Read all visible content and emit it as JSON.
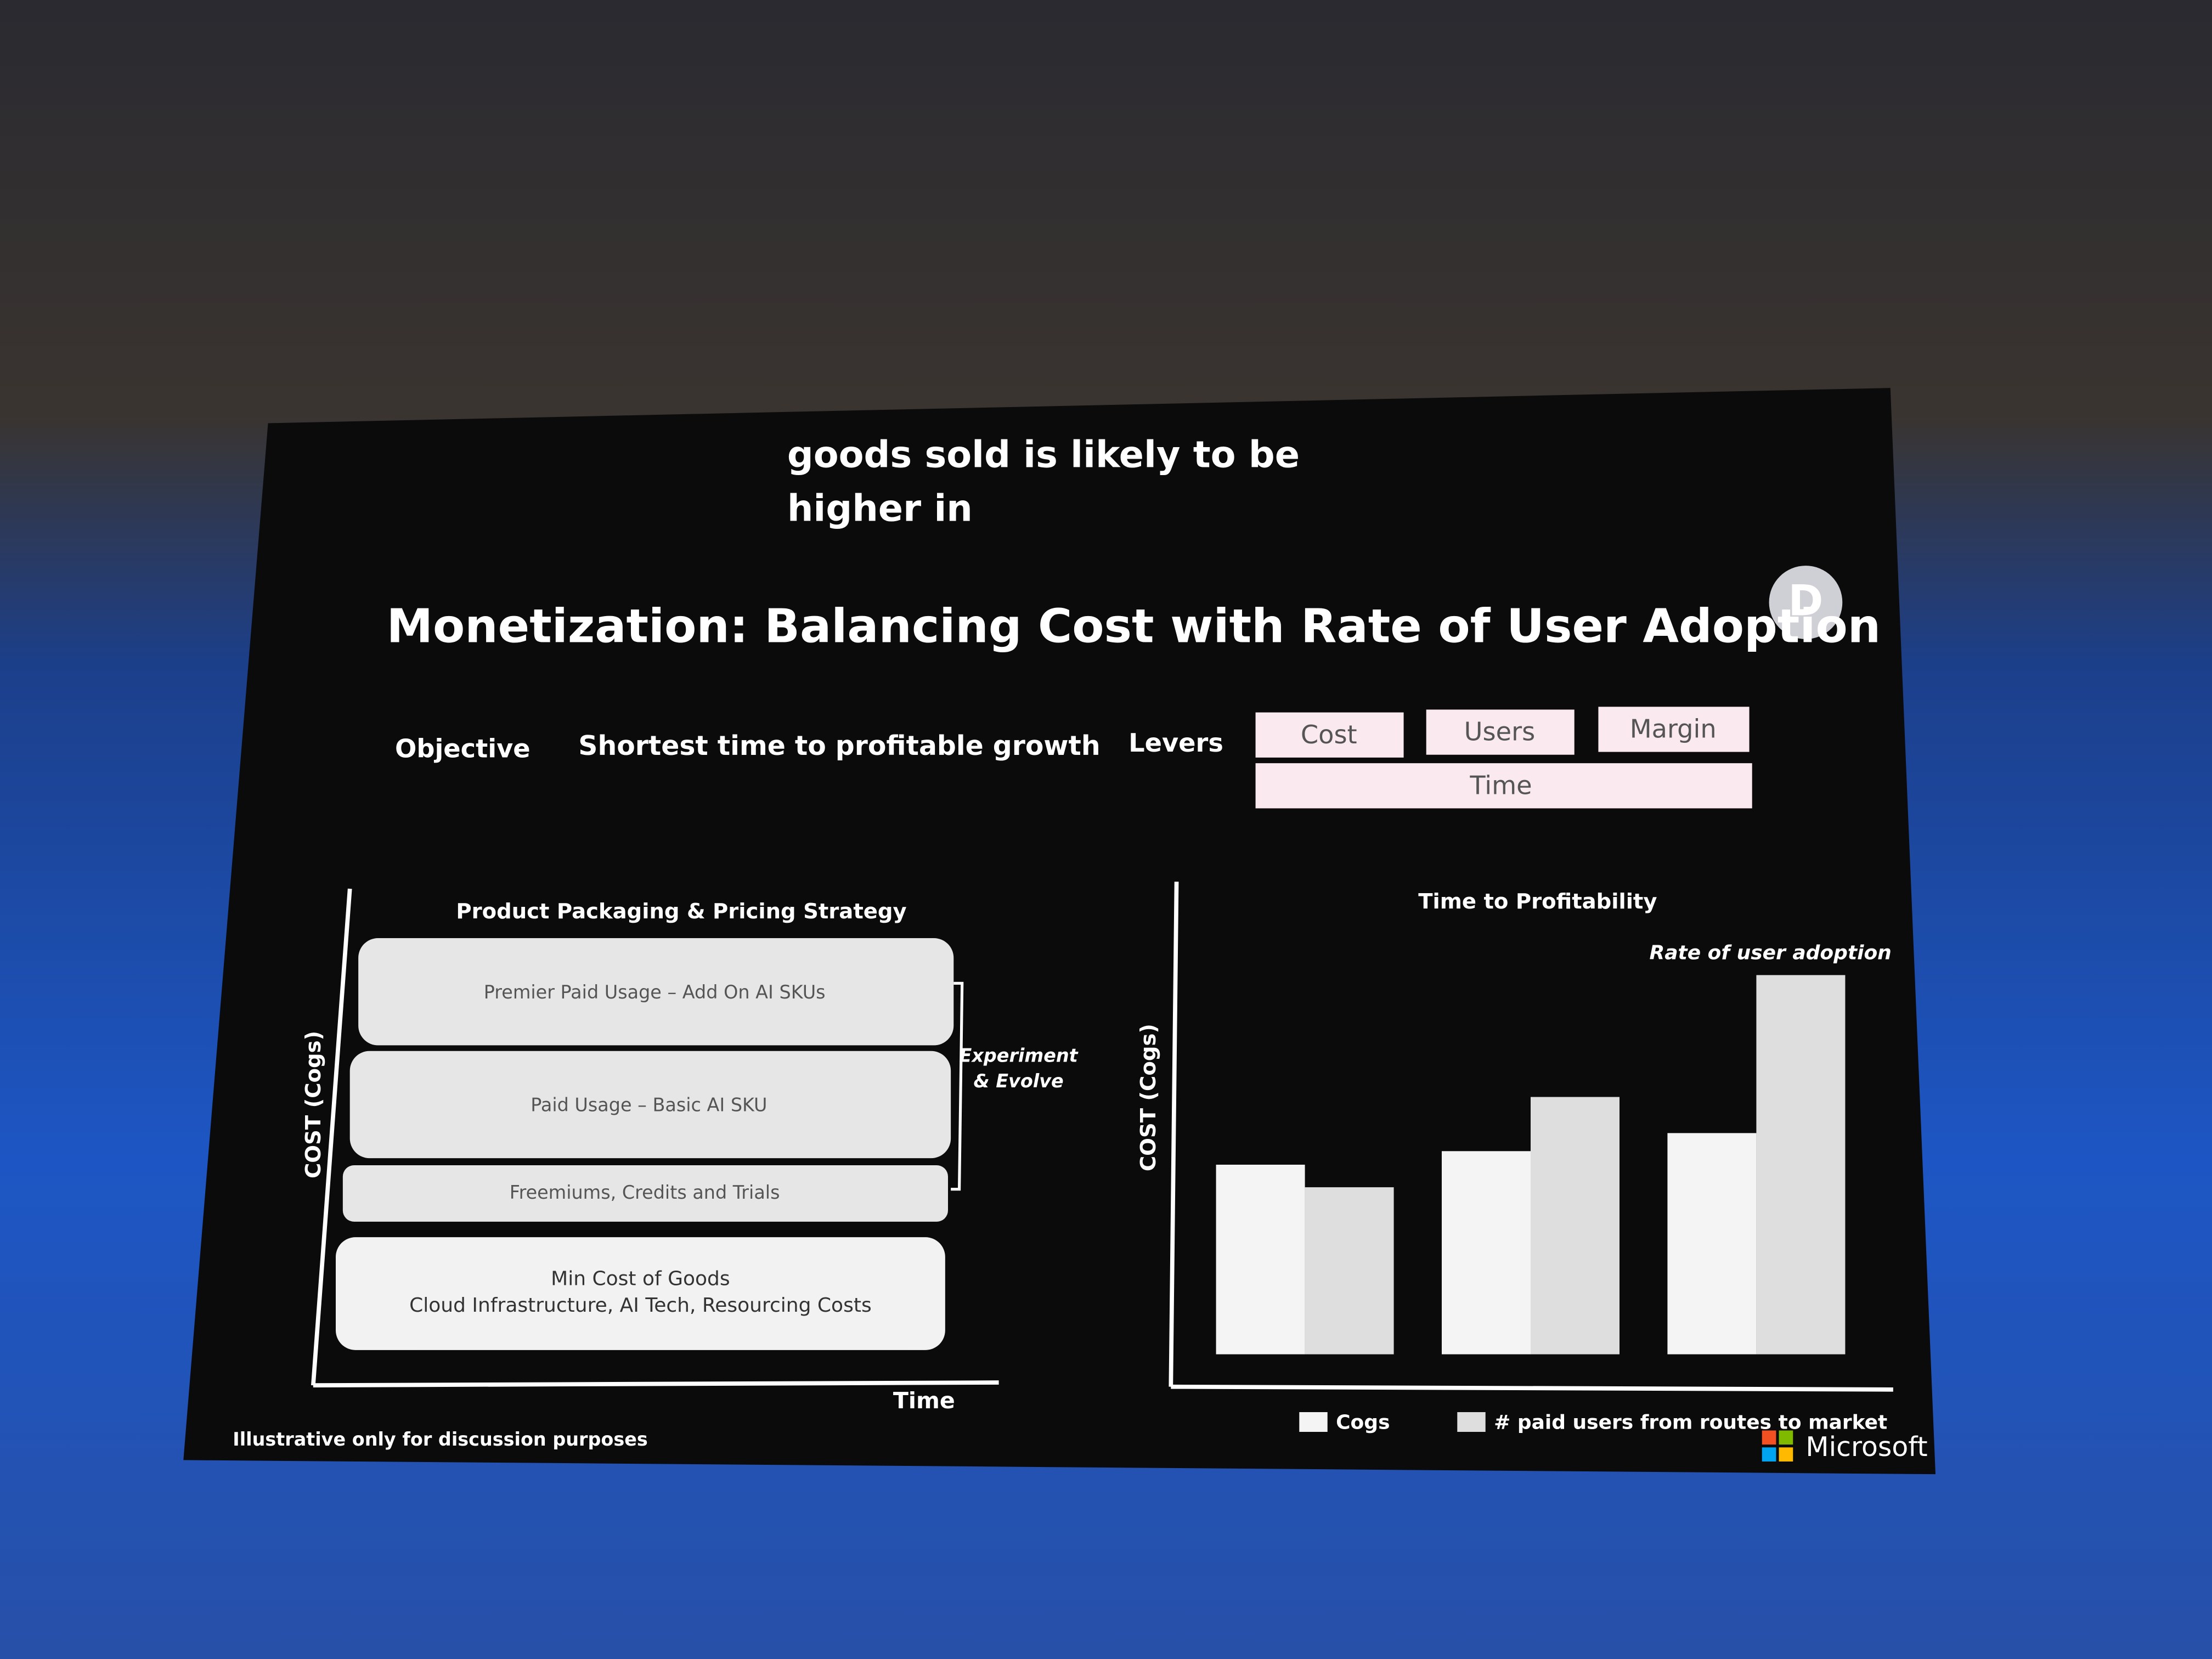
{
  "caption": [
    "goods sold is likely to be",
    "higher in"
  ],
  "badge": "D",
  "title": "Monetization: Balancing Cost with Rate of User Adoption",
  "objective": {
    "label": "Objective",
    "text": "Shortest time to profitable growth"
  },
  "levers": {
    "label": "Levers",
    "items": [
      "Cost",
      "Users",
      "Margin",
      "Time"
    ]
  },
  "packaging": {
    "title": "Product Packaging & Pricing Strategy",
    "y_label": "COST (Cogs)",
    "x_label": "Time",
    "layers": [
      [
        "Premier Paid Usage – Add On AI SKUs"
      ],
      [
        "Paid Usage – Basic AI SKU"
      ],
      [
        "Freemiums, Credits and Trials"
      ],
      [
        "Min Cost of Goods",
        "Cloud Infrastructure, AI Tech, Resourcing Costs"
      ]
    ],
    "bracket_label": [
      "Experiment",
      "& Evolve"
    ]
  },
  "chart_data": {
    "type": "bar",
    "title": "Time to Profitability",
    "y_label": "COST (Cogs)",
    "annotation": "Rate of user adoption",
    "categories": [
      null,
      null,
      null
    ],
    "series": [
      {
        "name": "Cogs",
        "color": "#f4f4f4",
        "values": [
          42,
          45,
          49
        ]
      },
      {
        "name": "# paid users from routes to market",
        "color": "#dedede",
        "values": [
          37,
          57,
          84
        ]
      }
    ],
    "ylim": [
      0,
      100
    ]
  },
  "footnote": "Illustrative only for discussion purposes",
  "brand": "Microsoft"
}
